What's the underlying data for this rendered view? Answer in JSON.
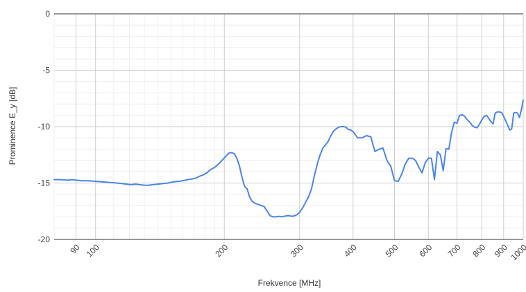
{
  "chart_data": {
    "type": "line",
    "title": "",
    "xlabel": "Frekvence [MHz]",
    "ylabel": "Prominence E_y [dB]",
    "x_scale": "log",
    "xlim": [
      80,
      1000
    ],
    "ylim": [
      -20,
      0
    ],
    "grid": true,
    "legend": "none",
    "line_color": "#4a86e8",
    "x_ticks": [
      {
        "value": 90,
        "label": "90"
      },
      {
        "value": 100,
        "label": "100"
      },
      {
        "value": 200,
        "label": "200"
      },
      {
        "value": 300,
        "label": "300"
      },
      {
        "value": 400,
        "label": "400"
      },
      {
        "value": 500,
        "label": "500"
      },
      {
        "value": 600,
        "label": "600"
      },
      {
        "value": 700,
        "label": "700"
      },
      {
        "value": 800,
        "label": "800"
      },
      {
        "value": 900,
        "label": "900"
      },
      {
        "value": 1000,
        "label": "1000"
      }
    ],
    "y_ticks": [
      {
        "value": 0,
        "label": "0"
      },
      {
        "value": -5,
        "label": "-5"
      },
      {
        "value": -10,
        "label": "-10"
      },
      {
        "value": -15,
        "label": "-15"
      },
      {
        "value": -20,
        "label": "-20"
      }
    ],
    "series": [
      {
        "x": [
          80,
          83,
          86,
          88,
          90,
          93,
          96,
          100,
          104,
          108,
          112,
          115,
          118,
          121,
          124,
          127,
          130,
          133,
          136,
          140,
          144,
          148,
          152,
          156,
          160,
          164,
          168,
          172,
          175,
          178,
          182,
          186,
          190,
          194,
          198,
          202,
          205,
          208,
          211,
          214,
          217,
          220,
          223,
          226,
          229,
          232,
          236,
          240,
          244,
          248,
          252,
          256,
          260,
          264,
          268,
          272,
          276,
          280,
          284,
          288,
          292,
          296,
          300,
          305,
          310,
          315,
          320,
          325,
          330,
          335,
          340,
          345,
          350,
          355,
          360,
          365,
          370,
          375,
          380,
          385,
          390,
          395,
          400,
          410,
          420,
          430,
          440,
          450,
          460,
          470,
          480,
          490,
          500,
          510,
          520,
          530,
          540,
          550,
          560,
          570,
          580,
          590,
          600,
          610,
          620,
          630,
          640,
          650,
          660,
          670,
          680,
          690,
          700,
          710,
          720,
          730,
          740,
          750,
          760,
          770,
          780,
          790,
          800,
          810,
          820,
          830,
          840,
          850,
          860,
          870,
          880,
          890,
          900,
          910,
          920,
          930,
          940,
          950,
          960,
          970,
          980,
          990,
          1000
        ],
        "y": [
          -14.7,
          -14.7,
          -14.75,
          -14.7,
          -14.75,
          -14.8,
          -14.8,
          -14.85,
          -14.9,
          -14.95,
          -15.0,
          -15.05,
          -15.1,
          -15.15,
          -15.1,
          -15.15,
          -15.2,
          -15.2,
          -15.15,
          -15.1,
          -15.05,
          -15.0,
          -14.9,
          -14.85,
          -14.8,
          -14.7,
          -14.65,
          -14.55,
          -14.4,
          -14.3,
          -14.1,
          -13.8,
          -13.6,
          -13.3,
          -12.95,
          -12.6,
          -12.35,
          -12.3,
          -12.4,
          -12.8,
          -13.5,
          -14.5,
          -15.3,
          -15.5,
          -16.2,
          -16.6,
          -16.8,
          -16.9,
          -17.0,
          -17.1,
          -17.5,
          -17.9,
          -18.0,
          -18.0,
          -17.95,
          -18.0,
          -17.95,
          -17.9,
          -17.9,
          -17.95,
          -17.9,
          -17.8,
          -17.6,
          -17.2,
          -16.7,
          -16.2,
          -15.5,
          -14.3,
          -13.3,
          -12.5,
          -11.9,
          -11.6,
          -11.3,
          -10.8,
          -10.4,
          -10.2,
          -10.05,
          -10.0,
          -10.0,
          -10.05,
          -10.25,
          -10.3,
          -10.45,
          -11.0,
          -11.0,
          -10.8,
          -10.9,
          -12.2,
          -12.0,
          -11.9,
          -13.0,
          -13.5,
          -14.8,
          -14.85,
          -14.2,
          -13.3,
          -12.8,
          -12.8,
          -13.0,
          -13.6,
          -14.1,
          -13.2,
          -12.8,
          -12.8,
          -14.7,
          -12.2,
          -12.5,
          -13.9,
          -11.95,
          -12.0,
          -10.5,
          -9.6,
          -9.7,
          -9.0,
          -8.95,
          -9.1,
          -9.4,
          -9.6,
          -9.9,
          -10.05,
          -10.1,
          -9.8,
          -9.4,
          -9.1,
          -9.0,
          -9.25,
          -9.55,
          -9.75,
          -8.8,
          -8.7,
          -8.7,
          -8.75,
          -9.1,
          -9.5,
          -9.9,
          -10.3,
          -10.2,
          -8.8,
          -8.75,
          -8.8,
          -9.2,
          -8.5,
          -7.65
        ]
      }
    ]
  }
}
